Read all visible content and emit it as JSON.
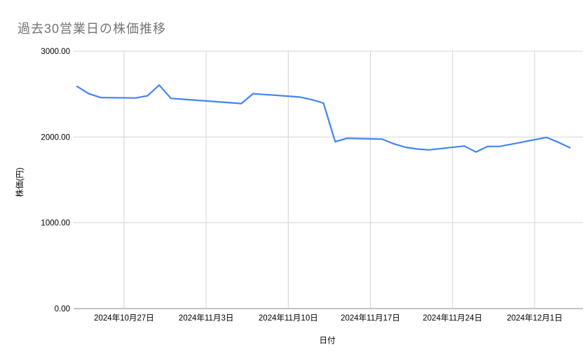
{
  "header": {
    "title": "過去30営業日の株価推移"
  },
  "colors": {
    "background": "#ffffff",
    "title_text": "#757575",
    "label_text": "#000000",
    "gridline": "#d4d4d4",
    "axis_line": "#8a8a8a",
    "series_line": "#4285f4"
  },
  "chart_data": {
    "type": "line",
    "title": "過去30営業日の株価推移",
    "xlabel": "日付",
    "ylabel": "株価(円)",
    "ylim": [
      0,
      3000
    ],
    "grid": true,
    "legend": "none",
    "y_ticks": [
      {
        "label": "3000.00",
        "value": 3000
      },
      {
        "label": "2000.00",
        "value": 2000
      },
      {
        "label": "1000.00",
        "value": 1000
      },
      {
        "label": "0.00",
        "value": 0
      }
    ],
    "x_ticks": [
      {
        "label": "2024年10月27日",
        "day_offset": 4
      },
      {
        "label": "2024年11月3日",
        "day_offset": 11
      },
      {
        "label": "2024年11月10日",
        "day_offset": 18
      },
      {
        "label": "2024年11月17日",
        "day_offset": 25
      },
      {
        "label": "2024年11月24日",
        "day_offset": 32
      },
      {
        "label": "2024年12月1日",
        "day_offset": 39
      }
    ],
    "series": [
      {
        "points": [
          {
            "date": "2024-10-23",
            "day_offset": 0,
            "value": 2590
          },
          {
            "date": "2024-10-24",
            "day_offset": 1,
            "value": 2505
          },
          {
            "date": "2024-10-25",
            "day_offset": 2,
            "value": 2460
          },
          {
            "date": "2024-10-28",
            "day_offset": 5,
            "value": 2455
          },
          {
            "date": "2024-10-29",
            "day_offset": 6,
            "value": 2480
          },
          {
            "date": "2024-10-30",
            "day_offset": 7,
            "value": 2605
          },
          {
            "date": "2024-10-31",
            "day_offset": 8,
            "value": 2450
          },
          {
            "date": "2024-11-01",
            "day_offset": 9,
            "value": 2440
          },
          {
            "date": "2024-11-05",
            "day_offset": 13,
            "value": 2400
          },
          {
            "date": "2024-11-06",
            "day_offset": 14,
            "value": 2390
          },
          {
            "date": "2024-11-07",
            "day_offset": 15,
            "value": 2505
          },
          {
            "date": "2024-11-08",
            "day_offset": 16,
            "value": 2495
          },
          {
            "date": "2024-11-11",
            "day_offset": 19,
            "value": 2465
          },
          {
            "date": "2024-11-12",
            "day_offset": 20,
            "value": 2435
          },
          {
            "date": "2024-11-13",
            "day_offset": 21,
            "value": 2395
          },
          {
            "date": "2024-11-14",
            "day_offset": 22,
            "value": 1945
          },
          {
            "date": "2024-11-15",
            "day_offset": 23,
            "value": 1985
          },
          {
            "date": "2024-11-18",
            "day_offset": 26,
            "value": 1975
          },
          {
            "date": "2024-11-19",
            "day_offset": 27,
            "value": 1920
          },
          {
            "date": "2024-11-20",
            "day_offset": 28,
            "value": 1880
          },
          {
            "date": "2024-11-21",
            "day_offset": 29,
            "value": 1860
          },
          {
            "date": "2024-11-22",
            "day_offset": 30,
            "value": 1850
          },
          {
            "date": "2024-11-25",
            "day_offset": 33,
            "value": 1895
          },
          {
            "date": "2024-11-26",
            "day_offset": 34,
            "value": 1825
          },
          {
            "date": "2024-11-27",
            "day_offset": 35,
            "value": 1890
          },
          {
            "date": "2024-11-28",
            "day_offset": 36,
            "value": 1890
          },
          {
            "date": "2024-11-29",
            "day_offset": 37,
            "value": 1915
          },
          {
            "date": "2024-12-02",
            "day_offset": 40,
            "value": 1995
          },
          {
            "date": "2024-12-03",
            "day_offset": 41,
            "value": 1940
          },
          {
            "date": "2024-12-04",
            "day_offset": 42,
            "value": 1875
          }
        ]
      }
    ]
  }
}
